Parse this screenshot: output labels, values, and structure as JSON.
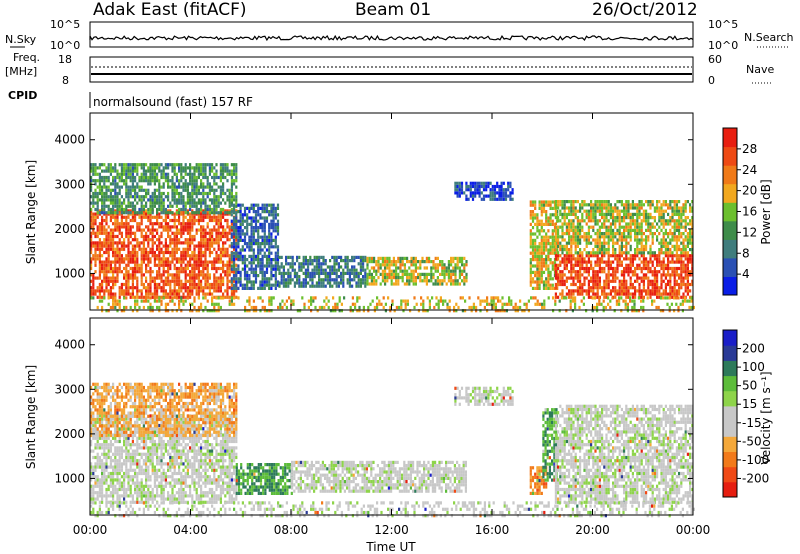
{
  "header": {
    "radar": "Adak East (fitACF)",
    "beam": "Beam 01",
    "date": "26/Oct/2012"
  },
  "status_panels": {
    "nsky_label": "N.Sky",
    "nsky_ticks": [
      "10^5",
      "10^0"
    ],
    "nsearch_label": "N.Search",
    "nsearch_ticks": [
      "10^5",
      "10^0"
    ],
    "freq_label_1": "Freq.",
    "freq_label_2": "[MHz]",
    "freq_ticks": [
      "18",
      "8"
    ],
    "nave_label": "Nave",
    "nave_ticks": [
      "60",
      "0"
    ],
    "cpid_label": "CPID",
    "cpid_value": "normalsound (fast) 157 RF"
  },
  "colors": {
    "power_scale": [
      "#0a1ee6",
      "#2a50b4",
      "#3f7d7d",
      "#3e8c4a",
      "#6cbf2e",
      "#f2a81f",
      "#f07a18",
      "#ee4a14",
      "#e81e10"
    ],
    "velocity_scale": [
      "#e61e10",
      "#f04a16",
      "#f27a1a",
      "#f4a83a",
      "#c8c8c8",
      "#c8c8c8",
      "#8ed44a",
      "#5cbc3a",
      "#2d7a5a",
      "#2a3a96",
      "#1a1ec8"
    ]
  },
  "chart_data": [
    {
      "type": "heatmap",
      "name": "power",
      "x_ticks": [
        "00:00",
        "04:00",
        "08:00",
        "12:00",
        "16:00",
        "20:00",
        "00:00"
      ],
      "xlim_hours": [
        0,
        24
      ],
      "ylabel": "Slant Range [km]",
      "y_ticks": [
        "1000",
        "2000",
        "3000",
        "4000"
      ],
      "ylim_km": [
        180,
        4600
      ],
      "colorbar_label": "Power [dB]",
      "colorbar_ticks": [
        "28",
        "24",
        "20",
        "16",
        "12",
        "8",
        "4"
      ],
      "colorbar_range": [
        0,
        32
      ],
      "regions": [
        {
          "t0": 0.0,
          "t1": 5.8,
          "r0": 500,
          "r1": 2500,
          "level": 0.85
        },
        {
          "t0": 0.0,
          "t1": 5.8,
          "r0": 2400,
          "r1": 3500,
          "level": 0.35
        },
        {
          "t0": 5.6,
          "t1": 7.5,
          "r0": 700,
          "r1": 2600,
          "level": 0.2
        },
        {
          "t0": 7.5,
          "t1": 11.0,
          "r0": 750,
          "r1": 1400,
          "level": 0.25
        },
        {
          "t0": 11.0,
          "t1": 15.0,
          "r0": 800,
          "r1": 1400,
          "level": 0.55
        },
        {
          "t0": 14.5,
          "t1": 16.8,
          "r0": 2700,
          "r1": 3100,
          "level": 0.1
        },
        {
          "t0": 17.5,
          "t1": 18.6,
          "r0": 700,
          "r1": 2700,
          "level": 0.6
        },
        {
          "t0": 18.5,
          "t1": 24.0,
          "r0": 500,
          "r1": 1500,
          "level": 0.9
        },
        {
          "t0": 18.5,
          "t1": 24.0,
          "r0": 1500,
          "r1": 2700,
          "level": 0.55
        },
        {
          "t0": 0.0,
          "t1": 24.0,
          "r0": 200,
          "r1": 550,
          "level": 0.6
        }
      ]
    },
    {
      "type": "heatmap",
      "name": "velocity",
      "x_ticks": [
        "00:00",
        "04:00",
        "08:00",
        "12:00",
        "16:00",
        "20:00",
        "00:00"
      ],
      "xlim_hours": [
        0,
        24
      ],
      "xlabel": "Time UT",
      "ylabel": "Slant Range [km]",
      "y_ticks": [
        "1000",
        "2000",
        "3000",
        "4000"
      ],
      "ylim_km": [
        180,
        4600
      ],
      "colorbar_label": "Velocity [m s⁻¹]",
      "colorbar_ticks": [
        "200",
        "100",
        "50",
        "15",
        "-15",
        "-50",
        "-100",
        "-200"
      ],
      "colorbar_range": [
        -250,
        250
      ],
      "regions": [
        {
          "t0": 0.0,
          "t1": 5.8,
          "r0": 500,
          "r1": 2500,
          "level": 0.0
        },
        {
          "t0": 0.0,
          "t1": 5.8,
          "r0": 2000,
          "r1": 3200,
          "level": -0.4
        },
        {
          "t0": 5.8,
          "t1": 8.0,
          "r0": 700,
          "r1": 1400,
          "level": 0.5
        },
        {
          "t0": 8.0,
          "t1": 15.0,
          "r0": 750,
          "r1": 1400,
          "level": 0.0
        },
        {
          "t0": 14.5,
          "t1": 16.8,
          "r0": 2700,
          "r1": 3100,
          "level": 0.0
        },
        {
          "t0": 17.5,
          "t1": 18.2,
          "r0": 700,
          "r1": 1300,
          "level": -0.6
        },
        {
          "t0": 18.0,
          "t1": 18.6,
          "r0": 1000,
          "r1": 2600,
          "level": 0.45
        },
        {
          "t0": 18.5,
          "t1": 24.0,
          "r0": 500,
          "r1": 2700,
          "level": 0.0
        },
        {
          "t0": 0.0,
          "t1": 24.0,
          "r0": 200,
          "r1": 550,
          "level": 0.0
        }
      ]
    }
  ]
}
